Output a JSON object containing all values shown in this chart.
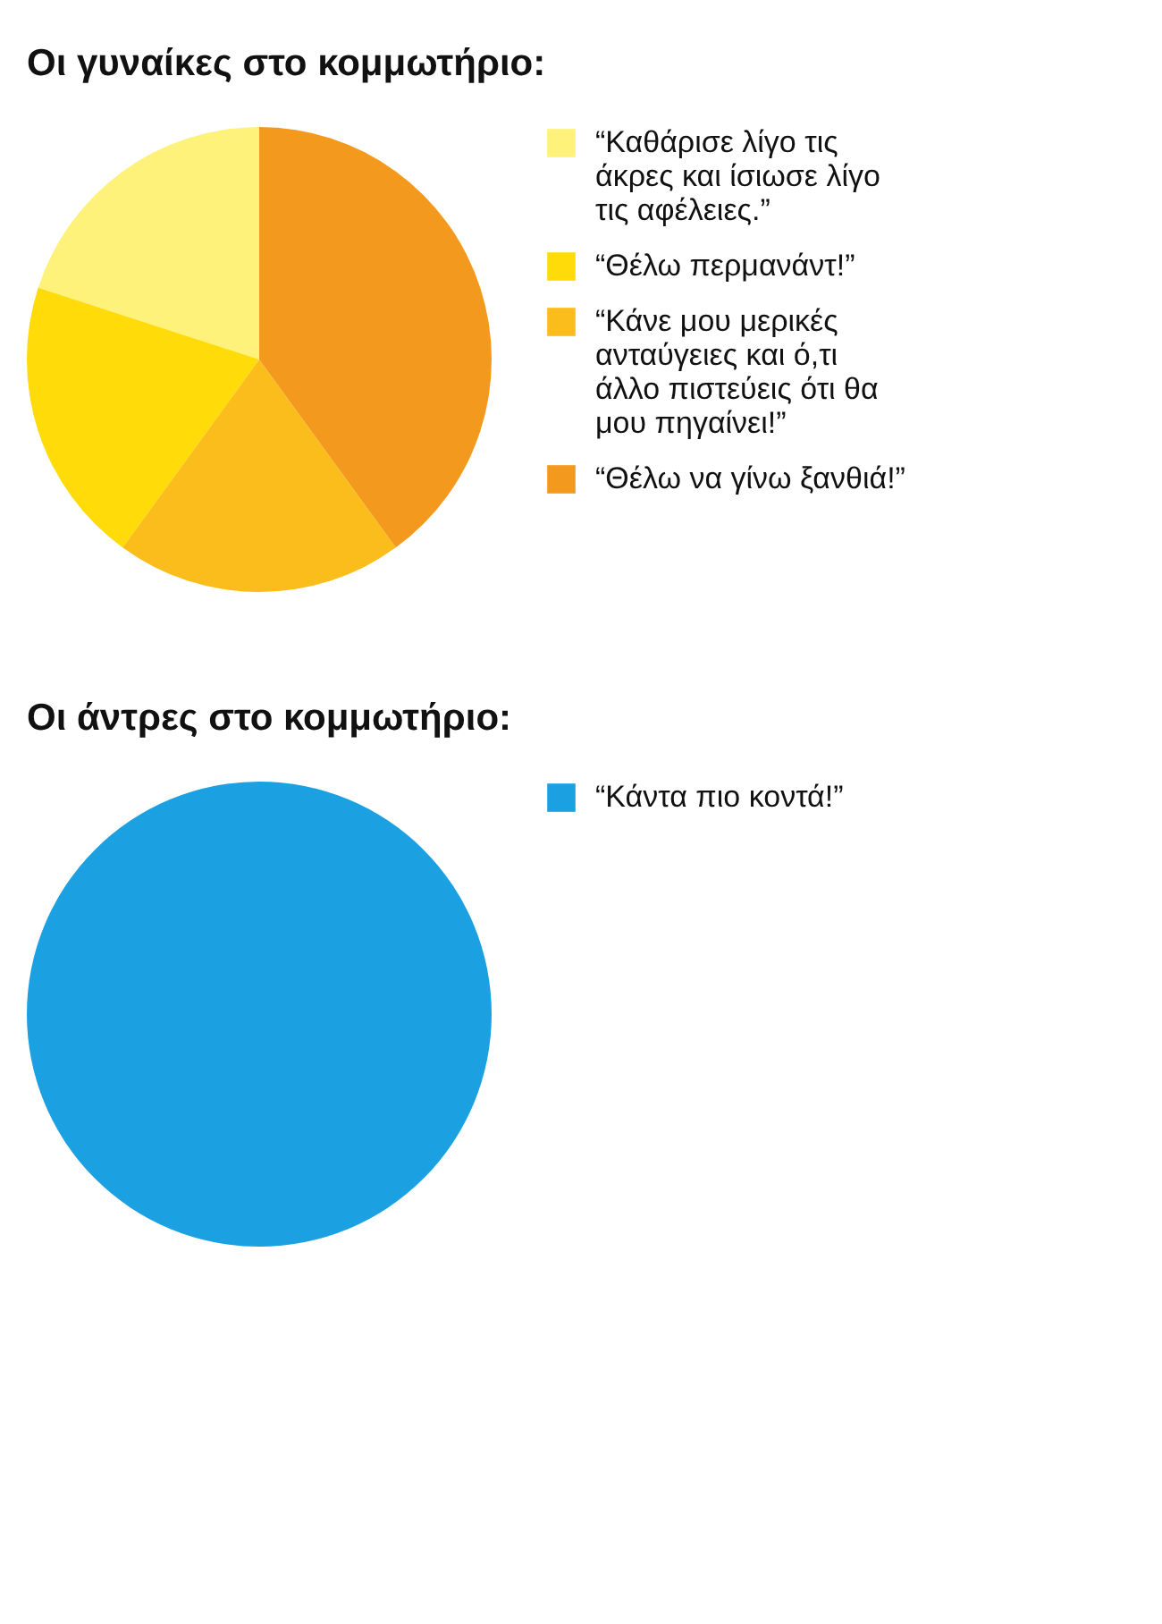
{
  "chart_data": [
    {
      "type": "pie",
      "title": "Οι γυναίκες στο κομμωτήριο:",
      "categories": [
        "“Καθάρισε λίγο τις άκρες και ίσιωσε λίγο τις αφέλειες.”",
        "“Θέλω περμανάντ!”",
        "“Κάνε μου μερικές ανταύγειες και ό,τι άλλο πιστεύεις ότι θα μου πηγαίνει!”",
        "“Θέλω να γίνω ξανθιά!”"
      ],
      "values": [
        20,
        20,
        20,
        40
      ],
      "colors": [
        "#fff27a",
        "#ffdb0a",
        "#fbbd1c",
        "#f39a1e"
      ],
      "legend": "right"
    },
    {
      "type": "pie",
      "title": "Οι άντρες στο κομμωτήριο:",
      "categories": [
        "“Κάντα πιο κοντά!”"
      ],
      "values": [
        100
      ],
      "colors": [
        "#1ba1e2"
      ],
      "legend": "right"
    }
  ]
}
